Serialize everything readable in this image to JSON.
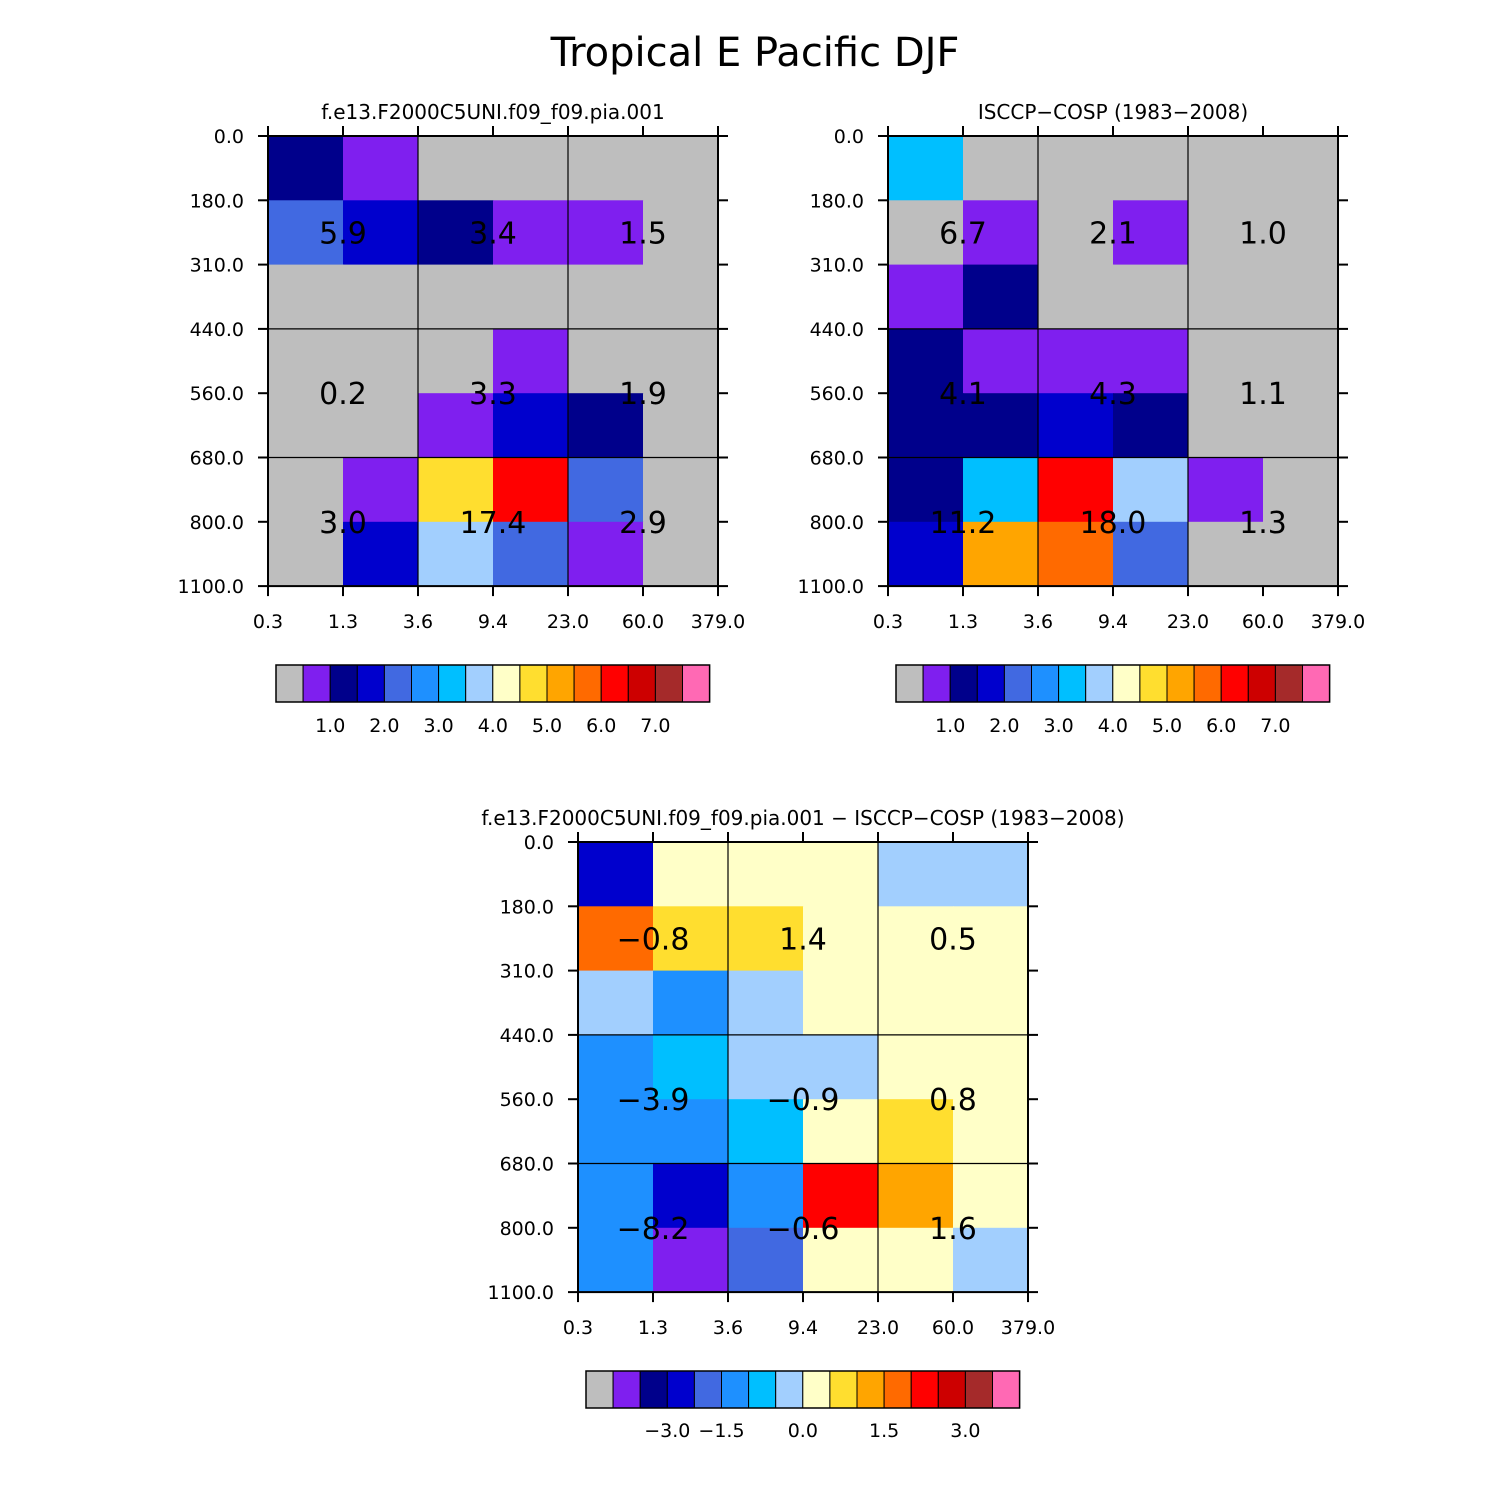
{
  "title": "Tropical E Pacific DJF",
  "palette": {
    "gray": "#bebebe",
    "violet": "#7f1fef",
    "navy": "#00008b",
    "blue": "#0000cd",
    "royal": "#4169e1",
    "dodger": "#1e90ff",
    "sky": "#00bfff",
    "pale": "#a2cffe",
    "cream": "#ffffc8",
    "yellow": "#ffde2f",
    "orange": "#ffa500",
    "dkorange": "#ff6a00",
    "red": "#ff0000",
    "crimson": "#cd0000",
    "brown": "#a52a2a",
    "pink": "#ff69b4"
  },
  "chart_data": [
    {
      "type": "heatmap",
      "id": "model",
      "title": "f.e13.F2000C5UNI.f09_f09.pia.001",
      "x_tick_labels": [
        "0.3",
        "1.3",
        "3.6",
        "9.4",
        "23.0",
        "60.0",
        "379.0"
      ],
      "y_tick_labels": [
        "0.0",
        "180.0",
        "310.0",
        "440.0",
        "560.0",
        "680.0",
        "800.0",
        "1100.0"
      ],
      "xlabel": "",
      "ylabel": "",
      "cell_colors": [
        [
          "navy",
          "violet",
          "gray",
          "gray",
          "gray",
          "gray"
        ],
        [
          "royal",
          "blue",
          "navy",
          "violet",
          "violet",
          "gray"
        ],
        [
          "gray",
          "gray",
          "gray",
          "gray",
          "gray",
          "gray"
        ],
        [
          "gray",
          "gray",
          "gray",
          "violet",
          "gray",
          "gray"
        ],
        [
          "gray",
          "gray",
          "violet",
          "blue",
          "navy",
          "gray"
        ],
        [
          "gray",
          "violet",
          "yellow",
          "red",
          "royal",
          "gray"
        ],
        [
          "gray",
          "blue",
          "pale",
          "royal",
          "violet",
          "gray"
        ]
      ],
      "region_labels": [
        {
          "col": 0,
          "row": 0,
          "value": "5.9"
        },
        {
          "col": 1,
          "row": 0,
          "value": "3.4"
        },
        {
          "col": 2,
          "row": 0,
          "value": "1.5"
        },
        {
          "col": 0,
          "row": 1,
          "value": "0.2"
        },
        {
          "col": 1,
          "row": 1,
          "value": "3.3"
        },
        {
          "col": 2,
          "row": 1,
          "value": "1.9"
        },
        {
          "col": 0,
          "row": 2,
          "value": "3.0"
        },
        {
          "col": 1,
          "row": 2,
          "value": "17.4"
        },
        {
          "col": 2,
          "row": 2,
          "value": "2.9"
        }
      ],
      "colorbar": {
        "colors": [
          "gray",
          "violet",
          "navy",
          "blue",
          "royal",
          "dodger",
          "sky",
          "pale",
          "cream",
          "yellow",
          "orange",
          "dkorange",
          "red",
          "crimson",
          "brown",
          "pink"
        ],
        "labels": [
          {
            "boundary": 2,
            "text": "1.0"
          },
          {
            "boundary": 4,
            "text": "2.0"
          },
          {
            "boundary": 6,
            "text": "3.0"
          },
          {
            "boundary": 8,
            "text": "4.0"
          },
          {
            "boundary": 10,
            "text": "5.0"
          },
          {
            "boundary": 12,
            "text": "6.0"
          },
          {
            "boundary": 14,
            "text": "7.0"
          }
        ]
      }
    },
    {
      "type": "heatmap",
      "id": "obs",
      "title": "ISCCP-COSP (1983-2008)",
      "x_tick_labels": [
        "0.3",
        "1.3",
        "3.6",
        "9.4",
        "23.0",
        "60.0",
        "379.0"
      ],
      "y_tick_labels": [
        "0.0",
        "180.0",
        "310.0",
        "440.0",
        "560.0",
        "680.0",
        "800.0",
        "1100.0"
      ],
      "xlabel": "",
      "ylabel": "",
      "cell_colors": [
        [
          "sky",
          "gray",
          "gray",
          "gray",
          "gray",
          "gray"
        ],
        [
          "gray",
          "violet",
          "gray",
          "violet",
          "gray",
          "gray"
        ],
        [
          "violet",
          "navy",
          "gray",
          "gray",
          "gray",
          "gray"
        ],
        [
          "navy",
          "violet",
          "violet",
          "violet",
          "gray",
          "gray"
        ],
        [
          "navy",
          "navy",
          "blue",
          "navy",
          "gray",
          "gray"
        ],
        [
          "navy",
          "sky",
          "red",
          "pale",
          "violet",
          "gray"
        ],
        [
          "blue",
          "orange",
          "dkorange",
          "royal",
          "gray",
          "gray"
        ]
      ],
      "region_labels": [
        {
          "col": 0,
          "row": 0,
          "value": "6.7"
        },
        {
          "col": 1,
          "row": 0,
          "value": "2.1"
        },
        {
          "col": 2,
          "row": 0,
          "value": "1.0"
        },
        {
          "col": 0,
          "row": 1,
          "value": "4.1"
        },
        {
          "col": 1,
          "row": 1,
          "value": "4.3"
        },
        {
          "col": 2,
          "row": 1,
          "value": "1.1"
        },
        {
          "col": 0,
          "row": 2,
          "value": "11.2"
        },
        {
          "col": 1,
          "row": 2,
          "value": "18.0"
        },
        {
          "col": 2,
          "row": 2,
          "value": "1.3"
        }
      ],
      "colorbar": {
        "colors": [
          "gray",
          "violet",
          "navy",
          "blue",
          "royal",
          "dodger",
          "sky",
          "pale",
          "cream",
          "yellow",
          "orange",
          "dkorange",
          "red",
          "crimson",
          "brown",
          "pink"
        ],
        "labels": [
          {
            "boundary": 2,
            "text": "1.0"
          },
          {
            "boundary": 4,
            "text": "2.0"
          },
          {
            "boundary": 6,
            "text": "3.0"
          },
          {
            "boundary": 8,
            "text": "4.0"
          },
          {
            "boundary": 10,
            "text": "5.0"
          },
          {
            "boundary": 12,
            "text": "6.0"
          },
          {
            "boundary": 14,
            "text": "7.0"
          }
        ]
      }
    },
    {
      "type": "heatmap",
      "id": "diff",
      "title": "f.e13.F2000C5UNI.f09_f09.pia.001 - ISCCP-COSP (1983-2008)",
      "x_tick_labels": [
        "0.3",
        "1.3",
        "3.6",
        "9.4",
        "23.0",
        "60.0",
        "379.0"
      ],
      "y_tick_labels": [
        "0.0",
        "180.0",
        "310.0",
        "440.0",
        "560.0",
        "680.0",
        "800.0",
        "1100.0"
      ],
      "xlabel": "",
      "ylabel": "",
      "cell_colors": [
        [
          "blue",
          "cream",
          "cream",
          "cream",
          "pale",
          "pale"
        ],
        [
          "dkorange",
          "yellow",
          "yellow",
          "cream",
          "cream",
          "cream"
        ],
        [
          "pale",
          "dodger",
          "pale",
          "cream",
          "cream",
          "cream"
        ],
        [
          "dodger",
          "sky",
          "pale",
          "pale",
          "cream",
          "cream"
        ],
        [
          "dodger",
          "dodger",
          "sky",
          "cream",
          "yellow",
          "cream"
        ],
        [
          "dodger",
          "blue",
          "dodger",
          "red",
          "orange",
          "cream"
        ],
        [
          "dodger",
          "violet",
          "royal",
          "cream",
          "cream",
          "pale"
        ]
      ],
      "region_labels": [
        {
          "col": 0,
          "row": 0,
          "value": "-0.8"
        },
        {
          "col": 1,
          "row": 0,
          "value": "1.4"
        },
        {
          "col": 2,
          "row": 0,
          "value": "0.5"
        },
        {
          "col": 0,
          "row": 1,
          "value": "-3.9"
        },
        {
          "col": 1,
          "row": 1,
          "value": "-0.9"
        },
        {
          "col": 2,
          "row": 1,
          "value": "0.8"
        },
        {
          "col": 0,
          "row": 2,
          "value": "-8.2"
        },
        {
          "col": 1,
          "row": 2,
          "value": "-0.6"
        },
        {
          "col": 2,
          "row": 2,
          "value": "1.6"
        }
      ],
      "colorbar": {
        "colors": [
          "gray",
          "violet",
          "navy",
          "blue",
          "royal",
          "dodger",
          "sky",
          "pale",
          "cream",
          "yellow",
          "orange",
          "dkorange",
          "red",
          "crimson",
          "brown",
          "pink"
        ],
        "labels": [
          {
            "boundary": 3,
            "text": "-3.0"
          },
          {
            "boundary": 5,
            "text": "-1.5"
          },
          {
            "boundary": 8,
            "text": "0.0"
          },
          {
            "boundary": 11,
            "text": "1.5"
          },
          {
            "boundary": 14,
            "text": "3.0"
          }
        ]
      }
    }
  ]
}
